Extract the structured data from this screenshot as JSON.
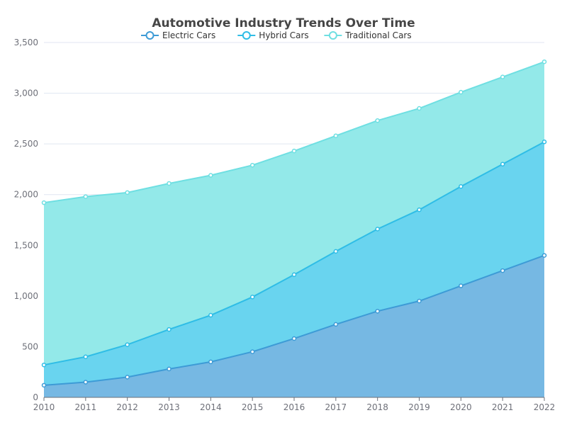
{
  "chart_data": {
    "type": "area",
    "stacked": true,
    "title": "Automotive Industry Trends Over Time",
    "xlabel": "",
    "ylabel": "",
    "categories": [
      "2010",
      "2011",
      "2012",
      "2013",
      "2014",
      "2015",
      "2016",
      "2017",
      "2018",
      "2019",
      "2020",
      "2021",
      "2022"
    ],
    "y_ticks": [
      "0",
      "500",
      "1,000",
      "1,500",
      "2,000",
      "2,500",
      "3,000",
      "3,500"
    ],
    "ylim": [
      0,
      3500
    ],
    "grid": true,
    "legend_position": "top-center",
    "series": [
      {
        "name": "Electric Cars",
        "values": [
          120,
          150,
          200,
          280,
          350,
          450,
          580,
          720,
          850,
          950,
          1100,
          1250,
          1400
        ],
        "line_color": "#3d9bd6",
        "fill_color": "#76b8e3"
      },
      {
        "name": "Hybrid Cars",
        "values": [
          200,
          250,
          320,
          390,
          460,
          540,
          630,
          720,
          810,
          900,
          980,
          1050,
          1120
        ],
        "line_color": "#2fbde6",
        "fill_color": "#69d4ef"
      },
      {
        "name": "Traditional Cars",
        "values": [
          1600,
          1580,
          1500,
          1440,
          1380,
          1300,
          1220,
          1140,
          1070,
          1000,
          930,
          860,
          790
        ],
        "line_color": "#6fdfe2",
        "fill_color": "#93e9e9"
      }
    ]
  }
}
